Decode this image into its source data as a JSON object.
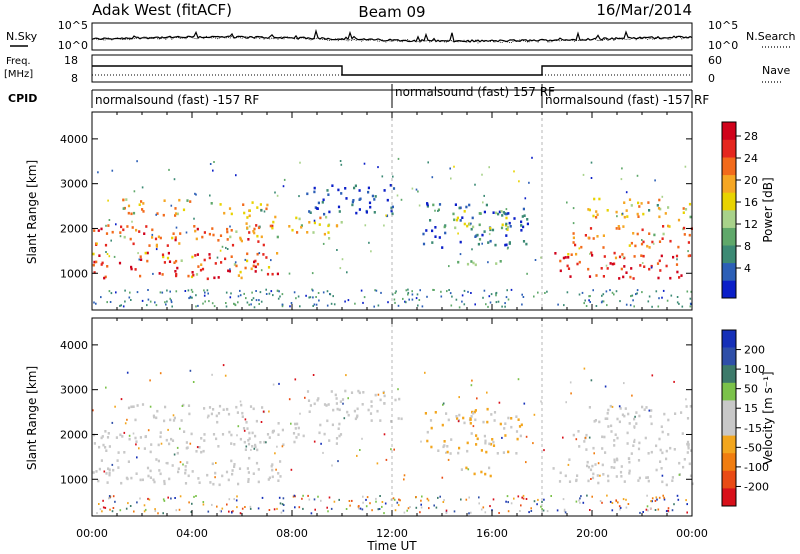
{
  "header": {
    "station": "Adak West (fitACF)",
    "beam": "Beam 09",
    "date": "16/Mar/2014"
  },
  "side_labels": {
    "n_sky": "N.Sky",
    "n_search": "N.Search",
    "freq_line1": "Freq.",
    "freq_line2": "[MHz]",
    "nave": "Nave",
    "cpid": "CPID"
  },
  "noise_panel": {
    "left_ticks": [
      "10^5",
      "10^0"
    ],
    "right_ticks": [
      "10^5",
      "10^0"
    ]
  },
  "freq_panel": {
    "left_ticks": [
      "18",
      "8"
    ],
    "right_ticks": [
      "60",
      "0"
    ]
  },
  "cpid_segments": [
    {
      "label": "normalsound (fast) -157 RF",
      "start_hour": 0,
      "end_hour": 12
    },
    {
      "label": "normalsound (fast) 157 RF",
      "start_hour": 12,
      "end_hour": 18
    },
    {
      "label": "normalsound (fast) -157 RF",
      "start_hour": 18,
      "end_hour": 24
    }
  ],
  "chart_data": [
    {
      "type": "heatmap",
      "quantity": "Power",
      "ylabel": "Slant Range [km]",
      "ylim": [
        180,
        4600
      ],
      "yticks": [
        "1000",
        "2000",
        "3000",
        "4000"
      ],
      "xlim": [
        0,
        24
      ],
      "colorbar_label": "Power [dB]",
      "colorbar_ticks": [
        "28",
        "24",
        "20",
        "16",
        "12",
        "8",
        "4"
      ],
      "colorbar_colors": [
        "#0b1fc8",
        "#2c5fb6",
        "#3c8a74",
        "#5fa86a",
        "#a8d28a",
        "#e8d300",
        "#f5a623",
        "#f26a1b",
        "#e5271f",
        "#d0021b"
      ],
      "echo_bands": [
        {
          "t0": 0,
          "t1": 7.6,
          "r0": 900,
          "r1": 1500,
          "level": 28
        },
        {
          "t0": 0,
          "t1": 7.2,
          "r0": 1600,
          "r1": 2100,
          "level": 26
        },
        {
          "t0": 1.2,
          "t1": 7.0,
          "r0": 2300,
          "r1": 2700,
          "level": 22
        },
        {
          "t0": 6.0,
          "t1": 10.0,
          "r0": 1800,
          "r1": 2300,
          "level": 20
        },
        {
          "t0": 8.5,
          "t1": 12.5,
          "r0": 2300,
          "r1": 3000,
          "level": 6
        },
        {
          "t0": 13.2,
          "t1": 17.4,
          "r0": 1600,
          "r1": 2600,
          "level": 8
        },
        {
          "t0": 14.3,
          "t1": 16.6,
          "r0": 2000,
          "r1": 2500,
          "level": 16
        },
        {
          "t0": 14.6,
          "t1": 16.4,
          "r0": 1100,
          "r1": 1300,
          "level": 14
        },
        {
          "t0": 18.4,
          "t1": 24,
          "r0": 900,
          "r1": 1500,
          "level": 28
        },
        {
          "t0": 19.2,
          "t1": 24,
          "r0": 1600,
          "r1": 2100,
          "level": 24
        },
        {
          "t0": 19.8,
          "t1": 24,
          "r0": 2200,
          "r1": 2700,
          "level": 20
        }
      ]
    },
    {
      "type": "heatmap",
      "quantity": "Velocity",
      "ylabel": "Slant Range [km]",
      "ylim": [
        180,
        4600
      ],
      "yticks": [
        "1000",
        "2000",
        "3000",
        "4000"
      ],
      "xlim": [
        0,
        24
      ],
      "colorbar_label": "Velocity [m s⁻¹]",
      "colorbar_ticks": [
        "200",
        "100",
        "50",
        "15",
        "-15",
        "-50",
        "-100",
        "-200"
      ],
      "colorbar_colors": [
        "#1630b8",
        "#2f4fa8",
        "#3d7a6a",
        "#7bc24a",
        "#c8c8c8",
        "#c8c8c8",
        "#f2a61e",
        "#f07d10",
        "#e94b15",
        "#d8101a"
      ],
      "echo_bands": [
        {
          "t0": 0,
          "t1": 7.6,
          "r0": 900,
          "r1": 1500,
          "level": 0
        },
        {
          "t0": 0,
          "t1": 7.2,
          "r0": 1600,
          "r1": 2100,
          "level": 0
        },
        {
          "t0": 1.2,
          "t1": 7.0,
          "r0": 2300,
          "r1": 2700,
          "level": -30
        },
        {
          "t0": 6.0,
          "t1": 10.0,
          "r0": 1800,
          "r1": 2300,
          "level": 0
        },
        {
          "t0": 8.5,
          "t1": 12.5,
          "r0": 2300,
          "r1": 3000,
          "level": -20
        },
        {
          "t0": 13.2,
          "t1": 17.4,
          "r0": 1600,
          "r1": 2600,
          "level": -40
        },
        {
          "t0": 14.6,
          "t1": 16.4,
          "r0": 1100,
          "r1": 1300,
          "level": -45
        },
        {
          "t0": 18.4,
          "t1": 24,
          "r0": 900,
          "r1": 1500,
          "level": 0
        },
        {
          "t0": 19.2,
          "t1": 24,
          "r0": 1600,
          "r1": 2100,
          "level": 0
        },
        {
          "t0": 19.8,
          "t1": 24,
          "r0": 2200,
          "r1": 2700,
          "level": 30
        }
      ]
    }
  ],
  "x_axis": {
    "ticks": [
      "00:00",
      "04:00",
      "08:00",
      "12:00",
      "16:00",
      "20:00",
      "00:00"
    ],
    "label": "Time UT"
  }
}
